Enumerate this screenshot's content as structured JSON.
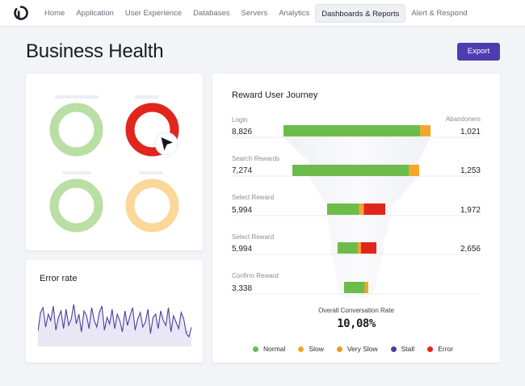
{
  "nav": {
    "items": [
      "Home",
      "Application",
      "User Experience",
      "Databases",
      "Servers",
      "Analytics",
      "Dashboards & Reports",
      "Alert & Respond"
    ],
    "active_index": 6
  },
  "page": {
    "title": "Business Health",
    "export_label": "Export"
  },
  "donuts": [
    {
      "status": "normal",
      "color": "#b9dfa4"
    },
    {
      "status": "error",
      "color": "#e0261d"
    },
    {
      "status": "normal",
      "color": "#b9dfa4"
    },
    {
      "status": "slow",
      "color": "#fbd79a"
    }
  ],
  "error_rate": {
    "title": "Error rate",
    "line_color": "#4b3f9e"
  },
  "funnel": {
    "title": "Reward User Journey",
    "abandoners_label": "Abandoners",
    "steps": [
      {
        "label": "Login",
        "value": "8,826",
        "abandoners": "1,021",
        "normal": 0.93,
        "slow": 0.07,
        "error": 0.0
      },
      {
        "label": "Search Rewards",
        "value": "7,274",
        "abandoners": "1,253",
        "normal": 0.92,
        "slow": 0.08,
        "error": 0.0
      },
      {
        "label": "Select Reward",
        "value": "5,994",
        "abandoners": "1,972",
        "normal": 0.55,
        "slow": 0.08,
        "error": 0.37
      },
      {
        "label": "Select Reward",
        "value": "5,994",
        "abandoners": "2,656",
        "normal": 0.52,
        "slow": 0.08,
        "error": 0.4
      },
      {
        "label": "Confirm Reward",
        "value": "3,338",
        "abandoners": "",
        "normal": 0.85,
        "slow": 0.15,
        "error": 0.0
      }
    ],
    "ocr_label": "Overall Conversation Rate",
    "ocr_value": "10,08%"
  },
  "legend": [
    {
      "label": "Normal",
      "color": "#6dbb4a"
    },
    {
      "label": "Slow",
      "color": "#f4a62a"
    },
    {
      "label": "Very Slow",
      "color": "#ef9a1a"
    },
    {
      "label": "Stall",
      "color": "#4b3f9e"
    },
    {
      "label": "Error",
      "color": "#e0261d"
    }
  ]
}
